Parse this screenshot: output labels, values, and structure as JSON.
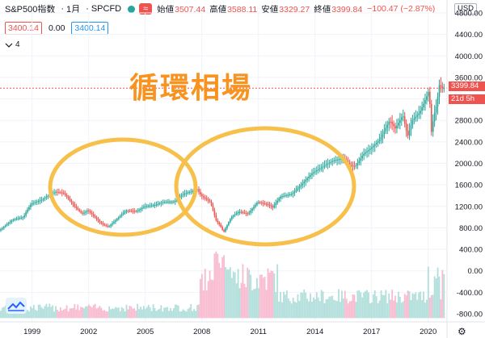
{
  "header": {
    "symbol": "S&P500指数",
    "interval": "1月",
    "source": "SPCFD",
    "status_icon": "green-dot",
    "wave_icon": "≈",
    "ohlc": [
      {
        "label": "始値",
        "value": "3507.44"
      },
      {
        "label": "高値",
        "value": "3588.11"
      },
      {
        "label": "安値",
        "value": "3329.27"
      },
      {
        "label": "終値",
        "value": "3399.84"
      },
      {
        "label": "",
        "value": "−100.47 (−2.87%)"
      }
    ]
  },
  "indicators": {
    "sell_price": "3400.14",
    "spread": "0.00",
    "buy_price": "3400.14",
    "collapsed_label": "4",
    "collapse_icon": "chevron-down-icon"
  },
  "currency": "USD",
  "overlay_title": "循環相場",
  "last_price_tag": "3399.84",
  "countdown_tag": "21d 5h",
  "settings_icon": "⚙",
  "colors": {
    "up": "#26a69a",
    "down": "#ef5350",
    "circle": "#f7c04a",
    "title": "#f7931e"
  },
  "chart_data": {
    "type": "candlestick",
    "title": "",
    "xlabel": "",
    "ylabel": "",
    "x_ticks": [
      "1999",
      "2002",
      "2005",
      "2008",
      "2011",
      "2014",
      "2017",
      "2020"
    ],
    "y_ticks": [
      "4800.00",
      "4400.00",
      "4000.00",
      "3600.00",
      "3200.00",
      "2800.00",
      "2400.00",
      "2000.00",
      "1600.00",
      "1200.00",
      "800.00",
      "400.00",
      "0.00",
      "-400.00",
      "-800.00"
    ],
    "ylim": [
      -800,
      4800
    ],
    "x_range": [
      1997.3,
      2021.0
    ],
    "price_path": [
      [
        1997.3,
        750
      ],
      [
        1998.0,
        950
      ],
      [
        1998.6,
        1000
      ],
      [
        1998.7,
        1080
      ],
      [
        1999.0,
        1250
      ],
      [
        1999.6,
        1330
      ],
      [
        2000.0,
        1420
      ],
      [
        2000.3,
        1470
      ],
      [
        2000.7,
        1450
      ],
      [
        2001.0,
        1330
      ],
      [
        2001.3,
        1200
      ],
      [
        2001.7,
        1060
      ],
      [
        2002.0,
        1130
      ],
      [
        2002.5,
        950
      ],
      [
        2002.8,
        860
      ],
      [
        2003.1,
        820
      ],
      [
        2003.5,
        950
      ],
      [
        2004.0,
        1120
      ],
      [
        2004.6,
        1110
      ],
      [
        2005.0,
        1200
      ],
      [
        2005.6,
        1230
      ],
      [
        2006.0,
        1280
      ],
      [
        2006.6,
        1290
      ],
      [
        2007.0,
        1420
      ],
      [
        2007.8,
        1520
      ],
      [
        2008.0,
        1400
      ],
      [
        2008.5,
        1280
      ],
      [
        2008.8,
        940
      ],
      [
        2009.0,
        850
      ],
      [
        2009.2,
        720
      ],
      [
        2009.6,
        1000
      ],
      [
        2010.0,
        1100
      ],
      [
        2010.5,
        1060
      ],
      [
        2011.0,
        1280
      ],
      [
        2011.6,
        1230
      ],
      [
        2011.8,
        1180
      ],
      [
        2012.2,
        1380
      ],
      [
        2012.8,
        1430
      ],
      [
        2013.2,
        1560
      ],
      [
        2013.9,
        1820
      ],
      [
        2014.5,
        1950
      ],
      [
        2015.0,
        2050
      ],
      [
        2015.6,
        2100
      ],
      [
        2015.9,
        1960
      ],
      [
        2016.2,
        1950
      ],
      [
        2016.6,
        2170
      ],
      [
        2017.0,
        2280
      ],
      [
        2017.5,
        2450
      ],
      [
        2018.0,
        2800
      ],
      [
        2018.3,
        2650
      ],
      [
        2018.7,
        2900
      ],
      [
        2018.95,
        2500
      ],
      [
        2019.2,
        2800
      ],
      [
        2019.6,
        2950
      ],
      [
        2019.95,
        3230
      ],
      [
        2020.1,
        3380
      ],
      [
        2020.2,
        2550
      ],
      [
        2020.35,
        2900
      ],
      [
        2020.5,
        3100
      ],
      [
        2020.65,
        3500
      ],
      [
        2020.75,
        3400
      ]
    ],
    "volume_series": {
      "name": "",
      "baseline": -880
    }
  }
}
